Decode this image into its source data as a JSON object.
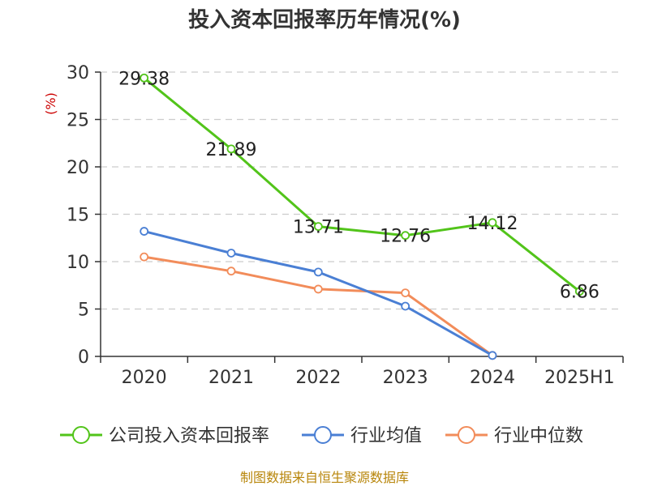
{
  "source": "制图数据来自恒生聚源数据库",
  "colors": {
    "grid": "#cccccc",
    "axis": "#333333",
    "unit": "#cc0000",
    "source": "#b8860b"
  },
  "chart_data": {
    "type": "line",
    "title": "投入资本回报率历年情况(%)",
    "ylabel": "(%)",
    "xlabel": "",
    "ylim": [
      0,
      30
    ],
    "yticks": [
      0,
      5,
      10,
      15,
      20,
      25,
      30
    ],
    "categories": [
      "2020",
      "2021",
      "2022",
      "2023",
      "2024",
      "2025H1"
    ],
    "grid": true,
    "legend_position": "bottom",
    "series": [
      {
        "name": "公司投入资本回报率",
        "color": "#52c41a",
        "values": [
          29.38,
          21.89,
          13.71,
          12.76,
          14.12,
          6.86
        ],
        "labels": [
          "29.38",
          "21.89",
          "13.71",
          "12.76",
          "14.12",
          "6.86"
        ],
        "show_labels": true
      },
      {
        "name": "行业均值",
        "color": "#4a7fd4",
        "values": [
          13.2,
          10.9,
          8.9,
          5.3,
          0.1,
          null
        ],
        "show_labels": false
      },
      {
        "name": "行业中位数",
        "color": "#f28c5a",
        "values": [
          10.5,
          9.0,
          7.1,
          6.7,
          0.1,
          null
        ],
        "show_labels": false
      }
    ]
  }
}
